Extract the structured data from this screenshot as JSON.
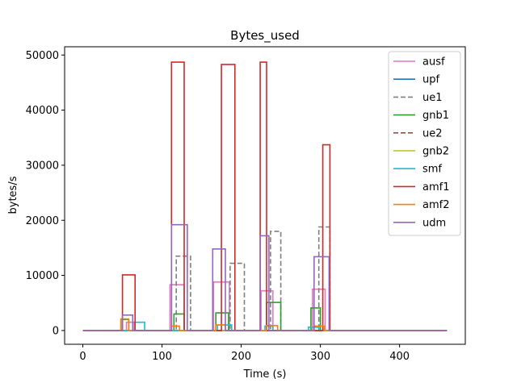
{
  "chart_data": {
    "type": "line",
    "title": "Bytes_used",
    "xlabel": "Time (s)",
    "ylabel": "bytes/s",
    "xlim": [
      -23,
      483
    ],
    "ylim": [
      -2500,
      51500
    ],
    "xticks": [
      0,
      100,
      200,
      300,
      400
    ],
    "yticks": [
      0,
      10000,
      20000,
      30000,
      40000,
      50000
    ],
    "grid": false,
    "legend_position": "top-right",
    "series": [
      {
        "name": "ausf",
        "color": "#e377c2",
        "dash": false,
        "points": [
          [
            0,
            0
          ],
          [
            55,
            0
          ],
          [
            55,
            1500
          ],
          [
            65,
            1500
          ],
          [
            65,
            0
          ],
          [
            110,
            0
          ],
          [
            110,
            8300
          ],
          [
            128,
            8300
          ],
          [
            128,
            0
          ],
          [
            165,
            0
          ],
          [
            165,
            8800
          ],
          [
            185,
            8800
          ],
          [
            185,
            0
          ],
          [
            225,
            0
          ],
          [
            225,
            7200
          ],
          [
            240,
            7200
          ],
          [
            240,
            0
          ],
          [
            290,
            0
          ],
          [
            290,
            7500
          ],
          [
            306,
            7500
          ],
          [
            306,
            0
          ],
          [
            460,
            0
          ]
        ]
      },
      {
        "name": "upf",
        "color": "#1f77b4",
        "dash": false,
        "points": [
          [
            0,
            0
          ],
          [
            460,
            0
          ]
        ]
      },
      {
        "name": "ue1",
        "color": "#7f7f7f",
        "dash": true,
        "points": [
          [
            0,
            0
          ],
          [
            118,
            0
          ],
          [
            118,
            13500
          ],
          [
            136,
            13500
          ],
          [
            136,
            0
          ],
          [
            186,
            0
          ],
          [
            186,
            12200
          ],
          [
            204,
            12200
          ],
          [
            204,
            0
          ],
          [
            237,
            0
          ],
          [
            237,
            18000
          ],
          [
            250,
            18000
          ],
          [
            250,
            0
          ],
          [
            298,
            0
          ],
          [
            298,
            18800
          ],
          [
            312,
            18800
          ],
          [
            312,
            0
          ],
          [
            460,
            0
          ]
        ]
      },
      {
        "name": "gnb1",
        "color": "#2ca02c",
        "dash": false,
        "points": [
          [
            0,
            0
          ],
          [
            50,
            0
          ],
          [
            50,
            2000
          ],
          [
            58,
            2000
          ],
          [
            58,
            0
          ],
          [
            115,
            0
          ],
          [
            115,
            3000
          ],
          [
            128,
            3000
          ],
          [
            128,
            0
          ],
          [
            168,
            0
          ],
          [
            168,
            3200
          ],
          [
            184,
            3200
          ],
          [
            184,
            0
          ],
          [
            232,
            0
          ],
          [
            232,
            5100
          ],
          [
            250,
            5100
          ],
          [
            250,
            0
          ],
          [
            288,
            0
          ],
          [
            288,
            4100
          ],
          [
            300,
            4100
          ],
          [
            300,
            0
          ],
          [
            460,
            0
          ]
        ]
      },
      {
        "name": "ue2",
        "color": "#8c564b",
        "dash": true,
        "points": [
          [
            0,
            0
          ],
          [
            460,
            0
          ]
        ]
      },
      {
        "name": "gnb2",
        "color": "#bcbd22",
        "dash": false,
        "points": [
          [
            0,
            0
          ],
          [
            460,
            0
          ]
        ]
      },
      {
        "name": "smf",
        "color": "#17becf",
        "dash": false,
        "points": [
          [
            0,
            0
          ],
          [
            63,
            0
          ],
          [
            63,
            1500
          ],
          [
            78,
            1500
          ],
          [
            78,
            0
          ],
          [
            170,
            0
          ],
          [
            170,
            1000
          ],
          [
            188,
            1000
          ],
          [
            188,
            0
          ],
          [
            230,
            0
          ],
          [
            230,
            800
          ],
          [
            240,
            800
          ],
          [
            240,
            0
          ],
          [
            285,
            0
          ],
          [
            285,
            600
          ],
          [
            298,
            600
          ],
          [
            298,
            0
          ],
          [
            460,
            0
          ]
        ]
      },
      {
        "name": "amf1",
        "color": "#d62728",
        "dash": false,
        "points": [
          [
            0,
            0
          ],
          [
            50,
            0
          ],
          [
            50,
            10100
          ],
          [
            66,
            10100
          ],
          [
            66,
            0
          ],
          [
            112,
            0
          ],
          [
            112,
            48700
          ],
          [
            128,
            48700
          ],
          [
            128,
            0
          ],
          [
            175,
            0
          ],
          [
            175,
            48300
          ],
          [
            192,
            48300
          ],
          [
            192,
            0
          ],
          [
            224,
            0
          ],
          [
            224,
            48700
          ],
          [
            232,
            48700
          ],
          [
            232,
            0
          ],
          [
            303,
            0
          ],
          [
            303,
            33700
          ],
          [
            312,
            33700
          ],
          [
            312,
            0
          ],
          [
            460,
            0
          ]
        ]
      },
      {
        "name": "amf2",
        "color": "#ff7f0e",
        "dash": false,
        "points": [
          [
            0,
            0
          ],
          [
            48,
            0
          ],
          [
            48,
            2100
          ],
          [
            58,
            2100
          ],
          [
            58,
            0
          ],
          [
            112,
            0
          ],
          [
            112,
            800
          ],
          [
            122,
            800
          ],
          [
            122,
            0
          ],
          [
            168,
            0
          ],
          [
            168,
            1000
          ],
          [
            180,
            1000
          ],
          [
            180,
            0
          ],
          [
            232,
            0
          ],
          [
            232,
            900
          ],
          [
            246,
            900
          ],
          [
            246,
            0
          ],
          [
            292,
            0
          ],
          [
            292,
            800
          ],
          [
            305,
            800
          ],
          [
            305,
            0
          ],
          [
            460,
            0
          ]
        ]
      },
      {
        "name": "udm",
        "color": "#9467bd",
        "dash": false,
        "points": [
          [
            0,
            0
          ],
          [
            50,
            0
          ],
          [
            50,
            2800
          ],
          [
            63,
            2800
          ],
          [
            63,
            0
          ],
          [
            112,
            0
          ],
          [
            112,
            19200
          ],
          [
            132,
            19200
          ],
          [
            132,
            0
          ],
          [
            164,
            0
          ],
          [
            164,
            14800
          ],
          [
            180,
            14800
          ],
          [
            180,
            0
          ],
          [
            224,
            0
          ],
          [
            224,
            17200
          ],
          [
            235,
            17200
          ],
          [
            235,
            0
          ],
          [
            292,
            0
          ],
          [
            292,
            13400
          ],
          [
            311,
            13400
          ],
          [
            311,
            0
          ],
          [
            460,
            0
          ]
        ]
      }
    ]
  }
}
